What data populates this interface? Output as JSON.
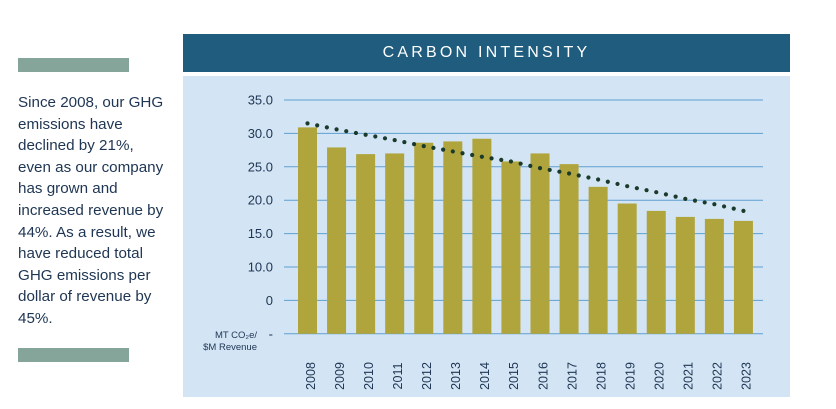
{
  "side_text": "Since 2008, our GHG emissions have declined by 21%, even as our company has grown and increased revenue by 44%. As a result, we have reduced total GHG emissions per dollar of revenue by 45%.",
  "chart_data": {
    "type": "bar",
    "title": "CARBON INTENSITY",
    "ylabel_line1": "MT CO₂e/",
    "ylabel_line2": "$M Revenue",
    "categories": [
      "2008",
      "2009",
      "2010",
      "2011",
      "2012",
      "2013",
      "2014",
      "2015",
      "2016",
      "2017",
      "2018",
      "2019",
      "2020",
      "2021",
      "2022",
      "2023"
    ],
    "values": [
      30.9,
      27.9,
      26.9,
      27.0,
      28.6,
      28.8,
      29.2,
      25.8,
      27.0,
      25.4,
      22.0,
      19.5,
      18.4,
      17.5,
      17.2,
      16.9
    ],
    "trendline": [
      31.5,
      30.6,
      29.8,
      29.0,
      28.1,
      27.3,
      26.5,
      25.8,
      24.8,
      24.0,
      23.1,
      22.1,
      21.2,
      20.2,
      19.4,
      18.4
    ],
    "y_tick_labels": [
      "35.0",
      "30.0",
      "25.0",
      "20.0",
      "15.0",
      "10.0",
      "0",
      "-"
    ],
    "ylim": [
      0,
      35
    ],
    "grid": true,
    "colors": {
      "bar": "#b0a43c",
      "trend": "#1a3a2c",
      "grid": "#5f9fd0",
      "band": "#1f5c7e",
      "panel": "#d3e5f4"
    }
  }
}
